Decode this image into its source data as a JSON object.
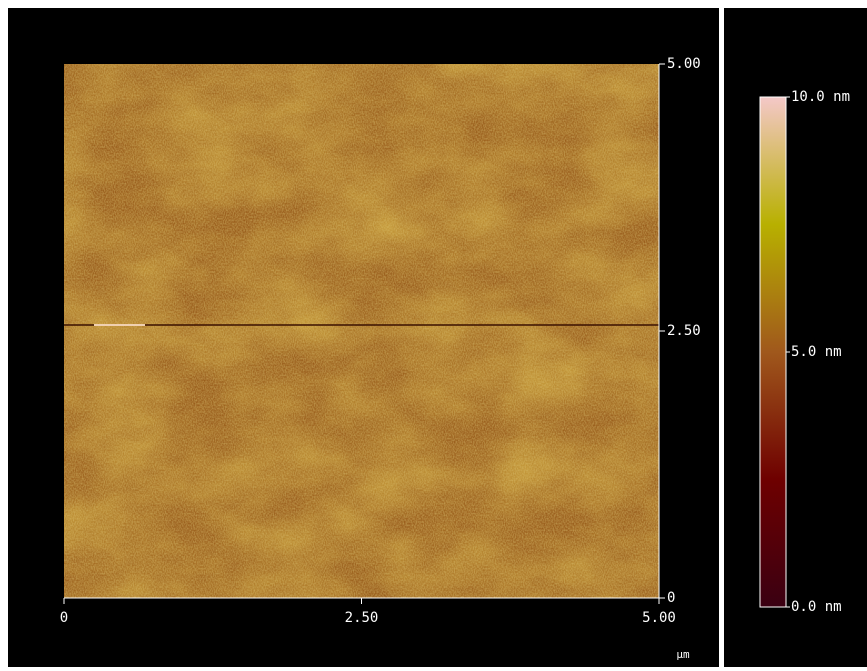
{
  "chart_data": {
    "type": "afm-image",
    "xlim": [
      0,
      5
    ],
    "xticks": [
      {
        "value": 0,
        "label": "0"
      },
      {
        "value": 2.5,
        "label": "2.50"
      },
      {
        "value": 5,
        "label": "5.00"
      }
    ],
    "ylim": [
      0,
      5
    ],
    "yticks": [
      {
        "value": 0,
        "label": "0"
      },
      {
        "value": 2.5,
        "label": "2.50"
      },
      {
        "value": 5,
        "label": "5.00"
      }
    ],
    "x_unit": "µm",
    "colorbar": {
      "clim": [
        0,
        10
      ],
      "ticks": [
        {
          "value": 0,
          "label": "0.0 nm"
        },
        {
          "value": 5,
          "label": "5.0 nm"
        },
        {
          "value": 10,
          "label": "10.0 nm"
        }
      ],
      "colors": [
        "#3a0012",
        "#6e0000",
        "#a0581c",
        "#b8b000",
        "#f4c8c8"
      ]
    }
  }
}
